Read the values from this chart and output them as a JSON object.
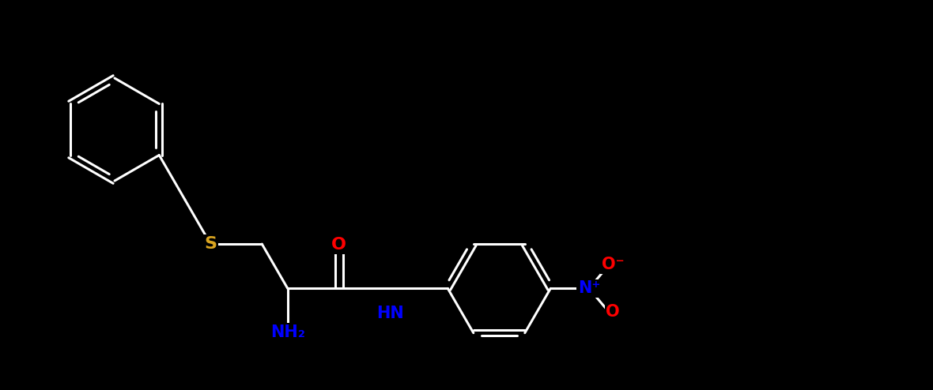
{
  "background_color": "#000000",
  "bond_color": "#FFFFFF",
  "bond_width": 2.2,
  "atom_colors": {
    "S": "#DAA520",
    "O": "#FF0000",
    "N_blue": "#0000FF"
  },
  "figsize": [
    11.8,
    4.94
  ],
  "dpi": 100,
  "xlim": [
    0,
    11.8
  ],
  "ylim": [
    0,
    4.94
  ]
}
